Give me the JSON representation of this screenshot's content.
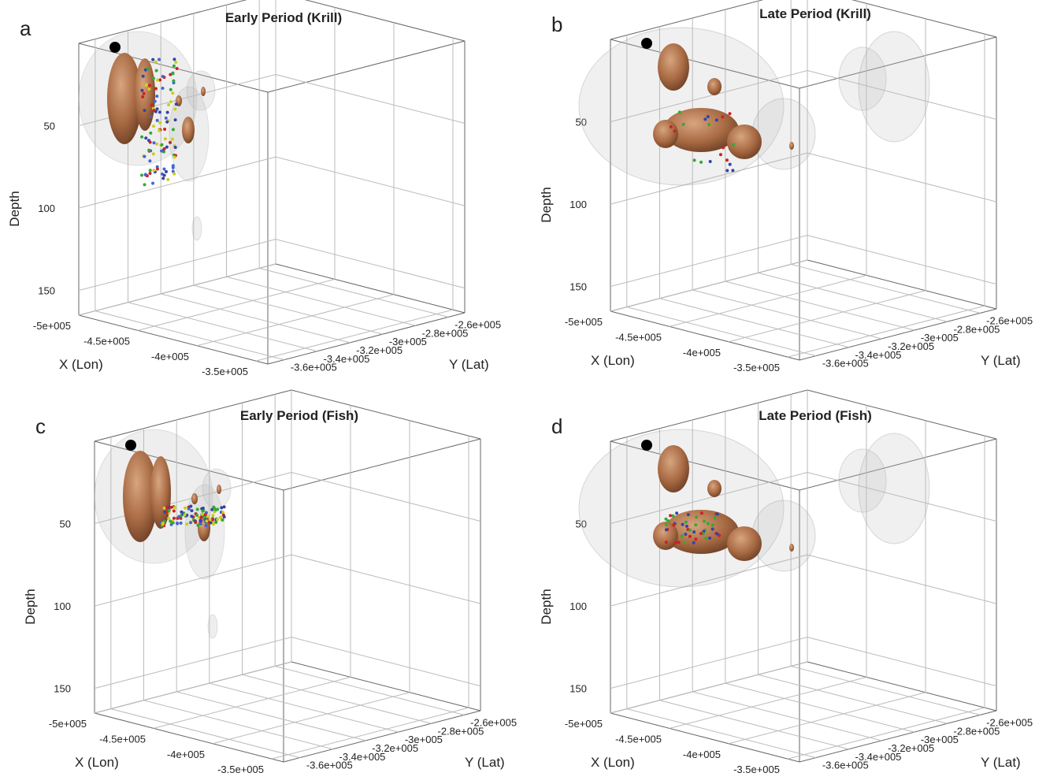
{
  "chart_data": [
    {
      "type": "scatter3d",
      "panel_label": "a",
      "title": "Early Period (Krill)",
      "xlabel": "X (Lon)",
      "ylabel": "Y (Lat)",
      "zlabel": "Depth",
      "xlim": [
        -500000,
        -340000
      ],
      "ylim": [
        -370000,
        -250000
      ],
      "zlim": [
        0,
        165
      ],
      "xticks": [
        {
          "value": -500000,
          "label": "-5e+005"
        },
        {
          "value": -450000,
          "label": "-4.5e+005"
        },
        {
          "value": -400000,
          "label": "-4e+005"
        },
        {
          "value": -350000,
          "label": "-3.5e+005"
        }
      ],
      "yticks": [
        {
          "value": -360000,
          "label": "-3.6e+005"
        },
        {
          "value": -340000,
          "label": "-3.4e+005"
        },
        {
          "value": -320000,
          "label": "-3.2e+005"
        },
        {
          "value": -300000,
          "label": "-3e+005"
        },
        {
          "value": -280000,
          "label": "-2.8e+005"
        },
        {
          "value": -260000,
          "label": "-2.6e+005"
        }
      ],
      "zticks": [
        50,
        100,
        150
      ]
    },
    {
      "type": "scatter3d",
      "panel_label": "b",
      "title": "Late Period (Krill)",
      "xlabel": "X (Lon)",
      "ylabel": "Y (Lat)",
      "zlabel": "Depth",
      "xlim": [
        -500000,
        -340000
      ],
      "ylim": [
        -370000,
        -250000
      ],
      "zlim": [
        0,
        165
      ],
      "xticks": [
        {
          "value": -500000,
          "label": "-5e+005"
        },
        {
          "value": -450000,
          "label": "-4.5e+005"
        },
        {
          "value": -400000,
          "label": "-4e+005"
        },
        {
          "value": -350000,
          "label": "-3.5e+005"
        }
      ],
      "yticks": [
        {
          "value": -360000,
          "label": "-3.6e+005"
        },
        {
          "value": -340000,
          "label": "-3.4e+005"
        },
        {
          "value": -320000,
          "label": "-3.2e+005"
        },
        {
          "value": -300000,
          "label": "-3e+005"
        },
        {
          "value": -280000,
          "label": "-2.8e+005"
        },
        {
          "value": -260000,
          "label": "-2.6e+005"
        }
      ],
      "zticks": [
        50,
        100,
        150
      ]
    },
    {
      "type": "scatter3d",
      "panel_label": "c",
      "title": "Early Period (Fish)",
      "xlabel": "X (Lon)",
      "ylabel": "Y (Lat)",
      "zlabel": "Depth",
      "xlim": [
        -500000,
        -340000
      ],
      "ylim": [
        -370000,
        -250000
      ],
      "zlim": [
        0,
        165
      ],
      "xticks": [
        {
          "value": -500000,
          "label": "-5e+005"
        },
        {
          "value": -450000,
          "label": "-4.5e+005"
        },
        {
          "value": -400000,
          "label": "-4e+005"
        },
        {
          "value": -350000,
          "label": "-3.5e+005"
        }
      ],
      "yticks": [
        {
          "value": -360000,
          "label": "-3.6e+005"
        },
        {
          "value": -340000,
          "label": "-3.4e+005"
        },
        {
          "value": -320000,
          "label": "-3.2e+005"
        },
        {
          "value": -300000,
          "label": "-3e+005"
        },
        {
          "value": -280000,
          "label": "-2.8e+005"
        },
        {
          "value": -260000,
          "label": "-2.6e+005"
        }
      ],
      "zticks": [
        50,
        100,
        150
      ]
    },
    {
      "type": "scatter3d",
      "panel_label": "d",
      "title": "Late Period (Fish)",
      "xlabel": "X (Lon)",
      "ylabel": "Y (Lat)",
      "zlabel": "Depth",
      "xlim": [
        -500000,
        -340000
      ],
      "ylim": [
        -370000,
        -250000
      ],
      "zlim": [
        0,
        165
      ],
      "xticks": [
        {
          "value": -500000,
          "label": "-5e+005"
        },
        {
          "value": -450000,
          "label": "-4.5e+005"
        },
        {
          "value": -400000,
          "label": "-4e+005"
        },
        {
          "value": -350000,
          "label": "-3.5e+005"
        }
      ],
      "yticks": [
        {
          "value": -360000,
          "label": "-3.6e+005"
        },
        {
          "value": -340000,
          "label": "-3.4e+005"
        },
        {
          "value": -320000,
          "label": "-3.2e+005"
        },
        {
          "value": -300000,
          "label": "-3e+005"
        },
        {
          "value": -280000,
          "label": "-2.8e+005"
        },
        {
          "value": -260000,
          "label": "-2.6e+005"
        }
      ],
      "zticks": [
        50,
        100,
        150
      ]
    }
  ]
}
